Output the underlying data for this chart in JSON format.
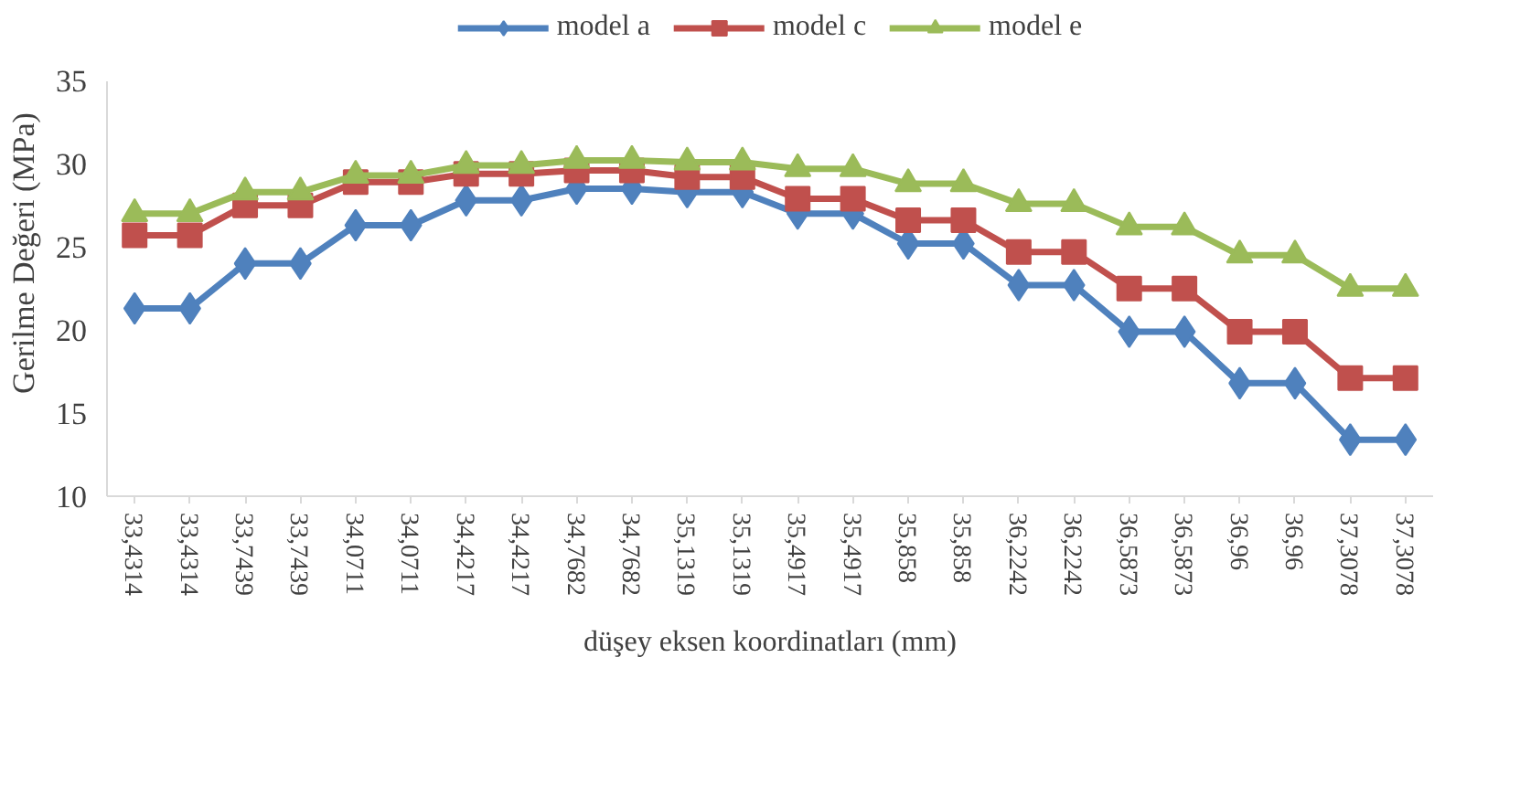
{
  "chart_data": {
    "type": "line",
    "xlabel": "düşey eksen koordinatları (mm)",
    "ylabel": "Gerilme Değeri (MPa)",
    "categories": [
      "33,4314",
      "33,4314",
      "33,7439",
      "33,7439",
      "34,0711",
      "34,0711",
      "34,4217",
      "34,4217",
      "34,7682",
      "34,7682",
      "35,1319",
      "35,1319",
      "35,4917",
      "35,4917",
      "35,858",
      "35,858",
      "36,2242",
      "36,2242",
      "36,5873",
      "36,5873",
      "36,96",
      "36,96",
      "37,3078",
      "37,3078"
    ],
    "series": [
      {
        "name": "model a",
        "color": "#4f81bd",
        "marker": "diamond",
        "values": [
          21.3,
          21.3,
          24.0,
          24.0,
          26.3,
          26.3,
          27.8,
          27.8,
          28.5,
          28.5,
          28.3,
          28.3,
          27.0,
          27.0,
          25.2,
          25.2,
          22.7,
          22.7,
          19.9,
          19.9,
          16.8,
          16.8,
          13.4,
          13.4
        ]
      },
      {
        "name": "model c",
        "color": "#c0504d",
        "marker": "square",
        "values": [
          25.7,
          25.7,
          27.5,
          27.5,
          28.9,
          28.9,
          29.4,
          29.4,
          29.6,
          29.6,
          29.2,
          29.2,
          27.9,
          27.9,
          26.6,
          26.6,
          24.7,
          24.7,
          22.5,
          22.5,
          19.9,
          19.9,
          17.1,
          17.1
        ]
      },
      {
        "name": "model e",
        "color": "#9bbb59",
        "marker": "triangle",
        "values": [
          27.0,
          27.0,
          28.3,
          28.3,
          29.3,
          29.3,
          29.9,
          29.9,
          30.2,
          30.2,
          30.1,
          30.1,
          29.7,
          29.7,
          28.8,
          28.8,
          27.6,
          27.6,
          26.2,
          26.2,
          24.5,
          24.5,
          22.5,
          22.5
        ]
      }
    ],
    "ylim": [
      10,
      35
    ],
    "yticks": [
      10,
      15,
      20,
      25,
      30,
      35
    ],
    "grid": false,
    "legend": "top",
    "line_style": "solid"
  }
}
